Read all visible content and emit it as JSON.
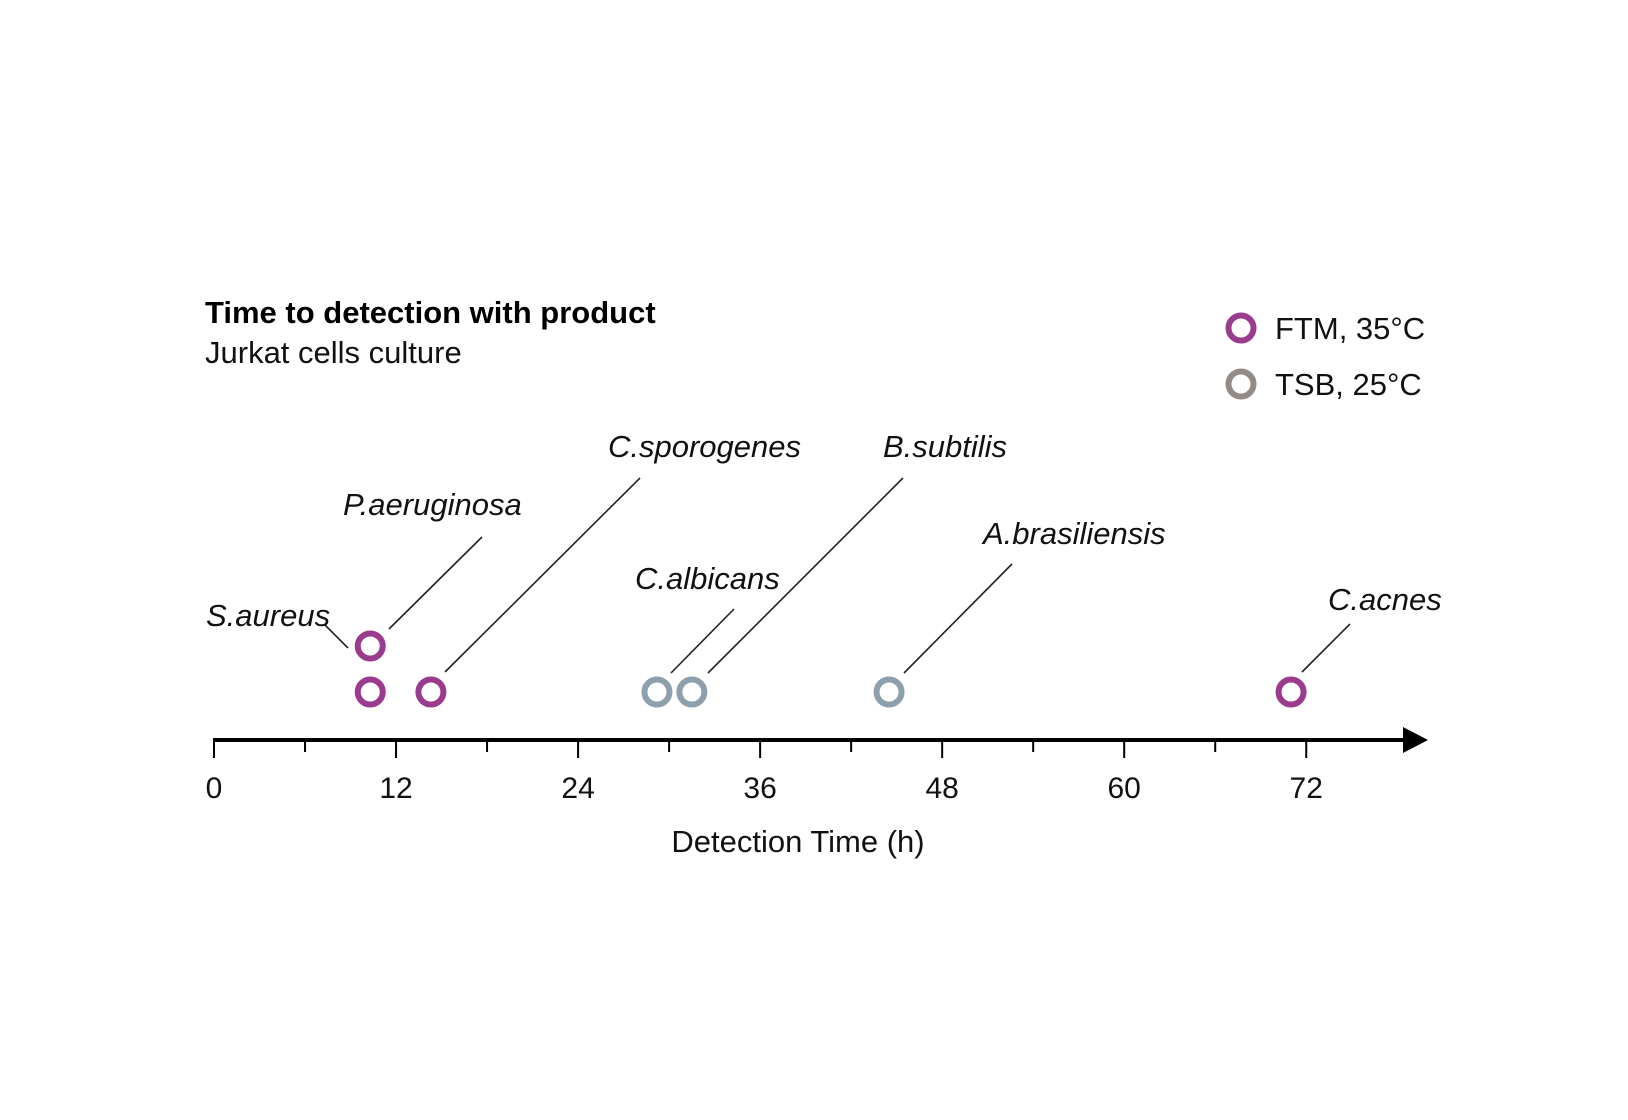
{
  "chart_data": {
    "type": "scatter",
    "title": "Time to detection with product",
    "subtitle": "Jurkat cells culture",
    "xlabel": "Detection Time (h)",
    "xlim": [
      0,
      80
    ],
    "xticks": [
      0,
      12,
      24,
      36,
      48,
      60,
      72
    ],
    "minor_xticks": [
      6,
      18,
      30,
      42,
      54,
      66
    ],
    "legend_position": "top-right",
    "legend": [
      {
        "name": "FTM, 35°C",
        "color": "#9b3b8e"
      },
      {
        "name": "TSB, 25°C",
        "color": "#938b86"
      }
    ],
    "series": [
      {
        "name": "FTM, 35°C",
        "color": "#9b3b8e",
        "points": [
          {
            "species": "S.aureus",
            "x": 10.3
          },
          {
            "species": "P.aeruginosa",
            "x": 10.3
          },
          {
            "species": "C.sporogenes",
            "x": 14.3
          },
          {
            "species": "C.acnes",
            "x": 71
          }
        ]
      },
      {
        "name": "TSB, 25°C",
        "color": "#8fa0ad",
        "points": [
          {
            "species": "C.albicans",
            "x": 29.2
          },
          {
            "species": "B.subtilis",
            "x": 31.5
          },
          {
            "species": "A.brasiliensis",
            "x": 44.5
          }
        ]
      }
    ],
    "grid": false
  }
}
